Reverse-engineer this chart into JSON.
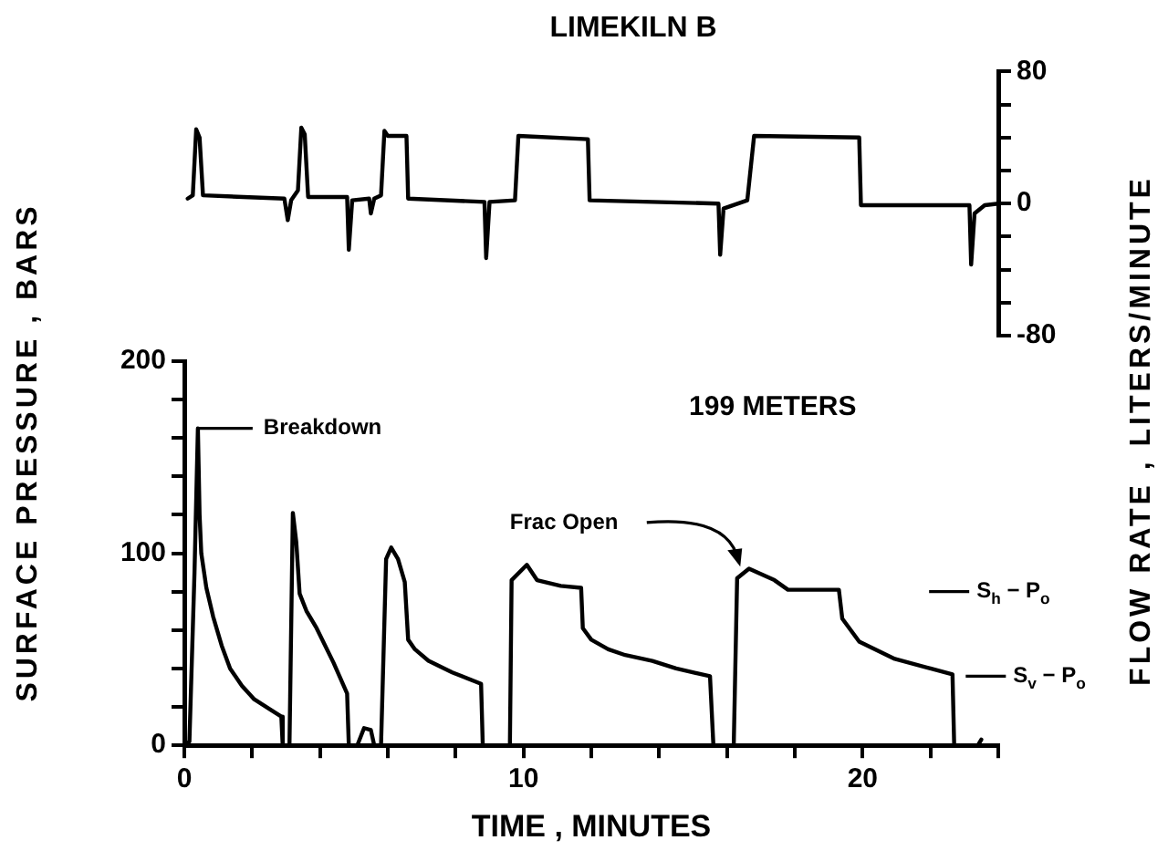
{
  "chart_data": [
    {
      "type": "line",
      "title": "LIMEKILN B",
      "y2label": "FLOW RATE , LITERS/MINUTE",
      "tick_labels": "y2",
      "series": [
        {
          "color": "#000000",
          "axis": "y2",
          "x": [
            0.1,
            0.25,
            0.35,
            0.45,
            0.55,
            2.95,
            3.05,
            3.15,
            3.35,
            3.45,
            3.55,
            3.65,
            4.8,
            4.85,
            4.95,
            5.45,
            5.5,
            5.6,
            5.8,
            5.9,
            6.0,
            6.55,
            6.6,
            8.85,
            8.9,
            9.0,
            9.75,
            9.85,
            11.9,
            11.95,
            15.75,
            15.8,
            15.9,
            16.6,
            16.8,
            19.9,
            19.95,
            23.15,
            23.2,
            23.3,
            23.6,
            24
          ],
          "values": [
            3,
            5,
            45,
            40,
            5,
            3,
            -10,
            2,
            8,
            46,
            42,
            4,
            4,
            -28,
            2,
            3,
            -6,
            3,
            5,
            44,
            41,
            41,
            3,
            1,
            -33,
            1,
            2,
            41,
            39,
            2,
            0,
            -31,
            -3,
            2,
            41,
            40,
            -1,
            -1,
            -37,
            -6,
            -1,
            0
          ]
        }
      ],
      "xlim": [
        0,
        24
      ],
      "y2lim": [
        -80,
        80
      ],
      "y2ticks": [
        -80,
        {
          "value": -60,
          "label": null
        },
        {
          "value": -40,
          "label": null
        },
        {
          "value": -20,
          "label": null
        },
        0,
        {
          "value": 20,
          "label": null
        },
        {
          "value": 40,
          "label": null
        },
        {
          "value": 60,
          "label": null
        },
        80
      ],
      "grid": false,
      "legend": false,
      "marker": "none",
      "line_style": "solid"
    },
    {
      "type": "line",
      "xlabel": "TIME , MINUTES",
      "ylabel": "SURFACE PRESSURE , BARS",
      "annotations": [
        {
          "text": "Breakdown",
          "x": 0.4,
          "y": 165
        },
        "199 METERS",
        "Frac Open",
        "S$_{h}$ − P$_{o}$",
        "S$_{v}$ − P$_{o}$"
      ],
      "series": [
        {
          "color": "#000000",
          "x": [
            0,
            0.15,
            0.3,
            0.4,
            0.45,
            0.5,
            0.65,
            0.85,
            1.1,
            1.35,
            1.7,
            2.06,
            2.5,
            2.86,
            2.9,
            3.1,
            3.2,
            3.3,
            3.4,
            3.6,
            3.9,
            4.4,
            4.8,
            4.85,
            5.1,
            5.3,
            5.5,
            5.6,
            5.8,
            5.95,
            6.1,
            6.3,
            6.5,
            6.6,
            6.8,
            7.2,
            7.9,
            8.75,
            8.8,
            9.6,
            9.65,
            10.1,
            10.4,
            11.1,
            11.7,
            11.75,
            12.0,
            12.5,
            13.0,
            13.8,
            14.5,
            15.5,
            15.6,
            16.2,
            16.3,
            16.65,
            17.4,
            17.8,
            19.3,
            19.4,
            19.9,
            20.95,
            22.0,
            22.65,
            22.7,
            23.4,
            23.5
          ],
          "values": [
            0,
            2,
            90,
            165,
            120,
            100,
            82,
            67,
            52,
            40,
            31,
            24,
            19,
            15,
            0,
            0,
            121,
            106,
            79,
            70,
            61,
            43,
            27,
            0,
            0,
            9,
            8,
            0,
            0,
            97,
            103,
            97,
            85,
            55,
            50,
            44,
            38,
            32,
            0,
            0,
            86,
            94,
            86,
            83,
            82,
            61,
            55,
            50,
            47,
            44,
            40,
            36,
            0,
            0,
            87,
            92,
            86,
            81,
            81,
            66,
            54,
            45,
            40,
            37,
            0,
            0,
            3
          ]
        }
      ],
      "xlim": [
        0,
        24
      ],
      "xticks": [
        0,
        {
          "value": 2,
          "label": null
        },
        {
          "value": 4,
          "label": null
        },
        {
          "value": 6,
          "label": null
        },
        {
          "value": 8,
          "label": null
        },
        10,
        {
          "value": 12,
          "label": null
        },
        {
          "value": 14,
          "label": null
        },
        {
          "value": 16,
          "label": null
        },
        {
          "value": 18,
          "label": null
        },
        20,
        {
          "value": 22,
          "label": null
        },
        {
          "value": 24,
          "label": null
        }
      ],
      "ylim": [
        0,
        200
      ],
      "yticks": [
        0,
        {
          "value": 20,
          "label": null
        },
        {
          "value": 40,
          "label": null
        },
        {
          "value": 60,
          "label": null
        },
        {
          "value": 80,
          "label": null
        },
        100,
        {
          "value": 120,
          "label": null
        },
        {
          "value": 140,
          "label": null
        },
        {
          "value": 160,
          "label": null
        },
        {
          "value": 180,
          "label": null
        },
        200
      ],
      "grid": false,
      "legend": false,
      "marker": "none",
      "line_style": "solid"
    }
  ]
}
